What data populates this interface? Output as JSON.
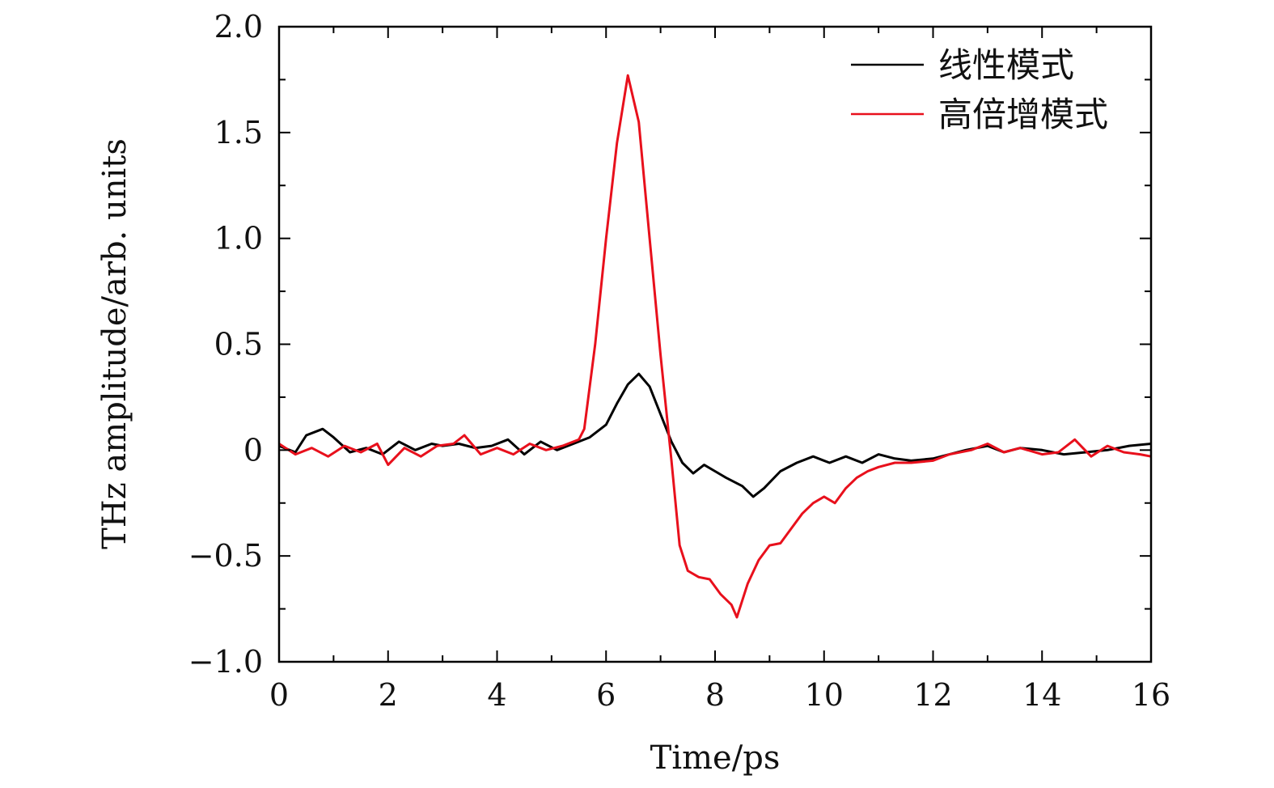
{
  "chart_data": {
    "type": "line",
    "xlabel": "Time/ps",
    "ylabel": "THz amplitude/arb. units",
    "xlim": [
      0,
      16
    ],
    "ylim": [
      -1.0,
      2.0
    ],
    "x_ticks": [
      "0",
      "2",
      "4",
      "6",
      "8",
      "10",
      "12",
      "14",
      "16"
    ],
    "y_ticks": [
      "−1.0",
      "−0.5",
      "0",
      "0.5",
      "1.0",
      "1.5",
      "2.0"
    ],
    "grid": false,
    "legend_position": "top-right",
    "series": [
      {
        "name": "线性模式",
        "color": "#000000",
        "points": [
          [
            0.0,
            0.02
          ],
          [
            0.3,
            -0.01
          ],
          [
            0.5,
            0.07
          ],
          [
            0.8,
            0.1
          ],
          [
            1.0,
            0.06
          ],
          [
            1.3,
            -0.01
          ],
          [
            1.6,
            0.01
          ],
          [
            1.9,
            -0.02
          ],
          [
            2.2,
            0.04
          ],
          [
            2.5,
            0.0
          ],
          [
            2.8,
            0.03
          ],
          [
            3.0,
            0.02
          ],
          [
            3.3,
            0.03
          ],
          [
            3.6,
            0.01
          ],
          [
            3.9,
            0.02
          ],
          [
            4.2,
            0.05
          ],
          [
            4.5,
            -0.02
          ],
          [
            4.8,
            0.04
          ],
          [
            5.1,
            0.0
          ],
          [
            5.4,
            0.03
          ],
          [
            5.7,
            0.06
          ],
          [
            6.0,
            0.12
          ],
          [
            6.2,
            0.22
          ],
          [
            6.4,
            0.31
          ],
          [
            6.6,
            0.36
          ],
          [
            6.8,
            0.3
          ],
          [
            7.0,
            0.17
          ],
          [
            7.2,
            0.04
          ],
          [
            7.4,
            -0.06
          ],
          [
            7.6,
            -0.11
          ],
          [
            7.8,
            -0.07
          ],
          [
            8.0,
            -0.1
          ],
          [
            8.2,
            -0.13
          ],
          [
            8.5,
            -0.17
          ],
          [
            8.7,
            -0.22
          ],
          [
            8.9,
            -0.18
          ],
          [
            9.2,
            -0.1
          ],
          [
            9.5,
            -0.06
          ],
          [
            9.8,
            -0.03
          ],
          [
            10.1,
            -0.06
          ],
          [
            10.4,
            -0.03
          ],
          [
            10.7,
            -0.06
          ],
          [
            11.0,
            -0.02
          ],
          [
            11.3,
            -0.04
          ],
          [
            11.6,
            -0.05
          ],
          [
            12.0,
            -0.04
          ],
          [
            12.3,
            -0.02
          ],
          [
            12.6,
            0.0
          ],
          [
            13.0,
            0.02
          ],
          [
            13.3,
            -0.01
          ],
          [
            13.6,
            0.01
          ],
          [
            14.0,
            0.0
          ],
          [
            14.4,
            -0.02
          ],
          [
            14.8,
            -0.01
          ],
          [
            15.2,
            0.0
          ],
          [
            15.6,
            0.02
          ],
          [
            16.0,
            0.03
          ]
        ]
      },
      {
        "name": "高倍增模式",
        "color": "#e8101c",
        "points": [
          [
            0.0,
            0.03
          ],
          [
            0.3,
            -0.02
          ],
          [
            0.6,
            0.01
          ],
          [
            0.9,
            -0.03
          ],
          [
            1.2,
            0.02
          ],
          [
            1.5,
            -0.01
          ],
          [
            1.8,
            0.03
          ],
          [
            2.0,
            -0.07
          ],
          [
            2.3,
            0.01
          ],
          [
            2.6,
            -0.03
          ],
          [
            2.9,
            0.02
          ],
          [
            3.2,
            0.03
          ],
          [
            3.4,
            0.07
          ],
          [
            3.7,
            -0.02
          ],
          [
            4.0,
            0.01
          ],
          [
            4.3,
            -0.02
          ],
          [
            4.6,
            0.03
          ],
          [
            4.9,
            0.0
          ],
          [
            5.2,
            0.02
          ],
          [
            5.5,
            0.05
          ],
          [
            5.6,
            0.1
          ],
          [
            5.8,
            0.5
          ],
          [
            6.0,
            1.0
          ],
          [
            6.2,
            1.45
          ],
          [
            6.4,
            1.77
          ],
          [
            6.6,
            1.55
          ],
          [
            6.8,
            1.0
          ],
          [
            7.0,
            0.45
          ],
          [
            7.2,
            -0.05
          ],
          [
            7.35,
            -0.45
          ],
          [
            7.5,
            -0.57
          ],
          [
            7.7,
            -0.6
          ],
          [
            7.9,
            -0.61
          ],
          [
            8.1,
            -0.68
          ],
          [
            8.3,
            -0.73
          ],
          [
            8.4,
            -0.79
          ],
          [
            8.6,
            -0.63
          ],
          [
            8.8,
            -0.52
          ],
          [
            9.0,
            -0.45
          ],
          [
            9.2,
            -0.44
          ],
          [
            9.4,
            -0.37
          ],
          [
            9.6,
            -0.3
          ],
          [
            9.8,
            -0.25
          ],
          [
            10.0,
            -0.22
          ],
          [
            10.2,
            -0.25
          ],
          [
            10.4,
            -0.18
          ],
          [
            10.6,
            -0.13
          ],
          [
            10.8,
            -0.1
          ],
          [
            11.0,
            -0.08
          ],
          [
            11.3,
            -0.06
          ],
          [
            11.6,
            -0.06
          ],
          [
            12.0,
            -0.05
          ],
          [
            12.3,
            -0.02
          ],
          [
            12.7,
            0.0
          ],
          [
            13.0,
            0.03
          ],
          [
            13.3,
            -0.01
          ],
          [
            13.6,
            0.01
          ],
          [
            14.0,
            -0.02
          ],
          [
            14.3,
            -0.01
          ],
          [
            14.6,
            0.05
          ],
          [
            14.9,
            -0.03
          ],
          [
            15.2,
            0.02
          ],
          [
            15.5,
            -0.01
          ],
          [
            15.8,
            -0.02
          ],
          [
            16.0,
            -0.03
          ]
        ]
      }
    ]
  }
}
